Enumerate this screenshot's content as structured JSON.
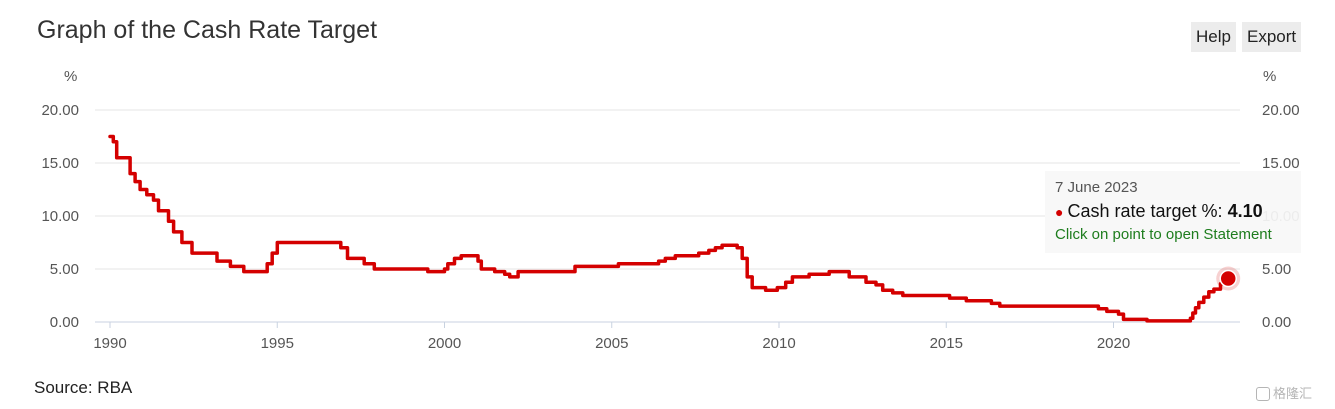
{
  "header": {
    "title": "Graph of the Cash Rate Target"
  },
  "toolbar": {
    "help_label": "Help",
    "export_label": "Export"
  },
  "footer": {
    "source": "Source: RBA",
    "watermark": "格隆汇"
  },
  "tooltip": {
    "date": "7 June 2023",
    "series_label": "Cash rate target %:",
    "value": "4.10",
    "link_text": "Click on point to open Statement"
  },
  "colors": {
    "series": "#d40000",
    "grid": "#e6e6e6",
    "axis": "#c8d2e0"
  },
  "chart_data": {
    "type": "line",
    "title": "Graph of the Cash Rate Target",
    "y_unit_left": "%",
    "y_unit_right": "%",
    "ylim": [
      0,
      20
    ],
    "xlim": [
      1990,
      2023.5
    ],
    "y_ticks": [
      "0.00",
      "5.00",
      "10.00",
      "15.00",
      "20.00"
    ],
    "x_ticks": [
      "1990",
      "1995",
      "2000",
      "2005",
      "2010",
      "2015",
      "2020"
    ],
    "grid": true,
    "legend": "none",
    "series": [
      {
        "name": "Cash rate target %",
        "x": [
          1990.0,
          1990.1,
          1990.2,
          1990.45,
          1990.6,
          1990.75,
          1990.9,
          1991.1,
          1991.3,
          1991.45,
          1991.6,
          1991.75,
          1991.9,
          1992.15,
          1992.3,
          1992.45,
          1993.2,
          1993.6,
          1994.0,
          1994.6,
          1994.7,
          1994.85,
          1995.0,
          1995.5,
          1996.0,
          1996.5,
          1996.9,
          1997.1,
          1997.4,
          1997.6,
          1997.9,
          1998.2,
          1998.5,
          1999.0,
          1999.5,
          1999.9,
          2000.0,
          2000.1,
          2000.3,
          2000.5,
          2000.75,
          2001.0,
          2001.1,
          2001.3,
          2001.5,
          2001.8,
          2001.95,
          2002.2,
          2002.5,
          2003.0,
          2003.5,
          2003.9,
          2004.0,
          2004.5,
          2005.0,
          2005.2,
          2005.5,
          2006.0,
          2006.4,
          2006.6,
          2006.9,
          2007.3,
          2007.6,
          2007.9,
          2008.1,
          2008.3,
          2008.6,
          2008.75,
          2008.9,
          2009.05,
          2009.2,
          2009.6,
          2009.8,
          2009.95,
          2010.2,
          2010.4,
          2010.9,
          2011.5,
          2011.9,
          2012.1,
          2012.4,
          2012.6,
          2012.9,
          2013.1,
          2013.4,
          2013.7,
          2014.5,
          2015.0,
          2015.1,
          2015.4,
          2015.6,
          2016.0,
          2016.35,
          2016.6,
          2017.5,
          2018.5,
          2019.4,
          2019.55,
          2019.8,
          2020.15,
          2020.3,
          2020.85,
          2021.0,
          2022.0,
          2022.3,
          2022.37,
          2022.45,
          2022.55,
          2022.7,
          2022.85,
          2023.0,
          2023.2,
          2023.43
        ],
        "y": [
          17.5,
          17.0,
          15.5,
          15.5,
          14.0,
          13.25,
          12.5,
          12.0,
          11.5,
          10.5,
          10.5,
          9.5,
          8.5,
          7.5,
          7.5,
          6.5,
          5.75,
          5.25,
          4.75,
          4.75,
          5.5,
          6.5,
          7.5,
          7.5,
          7.5,
          7.5,
          7.0,
          6.0,
          6.0,
          5.5,
          5.0,
          5.0,
          5.0,
          5.0,
          4.75,
          4.75,
          5.0,
          5.5,
          6.0,
          6.25,
          6.25,
          5.75,
          5.0,
          5.0,
          4.75,
          4.5,
          4.25,
          4.75,
          4.75,
          4.75,
          4.75,
          5.25,
          5.25,
          5.25,
          5.25,
          5.5,
          5.5,
          5.5,
          5.75,
          6.0,
          6.25,
          6.25,
          6.5,
          6.75,
          7.0,
          7.25,
          7.25,
          7.0,
          6.0,
          4.25,
          3.25,
          3.0,
          3.0,
          3.25,
          3.75,
          4.25,
          4.5,
          4.75,
          4.75,
          4.25,
          4.25,
          3.75,
          3.5,
          3.0,
          2.75,
          2.5,
          2.5,
          2.5,
          2.25,
          2.25,
          2.0,
          2.0,
          1.75,
          1.5,
          1.5,
          1.5,
          1.5,
          1.25,
          1.0,
          0.75,
          0.25,
          0.25,
          0.1,
          0.1,
          0.35,
          0.85,
          1.35,
          1.85,
          2.35,
          2.85,
          3.1,
          3.6,
          4.1
        ]
      }
    ],
    "highlight": {
      "x": 2023.43,
      "y": 4.1
    }
  }
}
